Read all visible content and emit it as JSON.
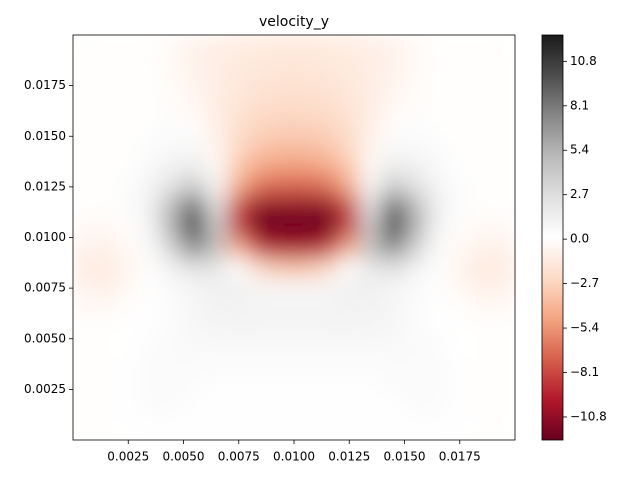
{
  "chart_data": {
    "type": "contourf",
    "title": "velocity_y",
    "x": [
      0.0005,
      0.0015,
      0.0025,
      0.0035,
      0.0045,
      0.0055,
      0.0065,
      0.0075,
      0.0085,
      0.0095,
      0.0105,
      0.0115,
      0.0125,
      0.0135,
      0.0145,
      0.0155,
      0.0165,
      0.0175,
      0.0185,
      0.0195
    ],
    "y": [
      0.0195,
      0.0185,
      0.0175,
      0.0165,
      0.0155,
      0.0145,
      0.0135,
      0.0125,
      0.0115,
      0.0105,
      0.0095,
      0.0085,
      0.0075,
      0.0065,
      0.0055,
      0.0045,
      0.0035,
      0.0025,
      0.0015,
      0.0005
    ],
    "z": [
      [
        0,
        0,
        0,
        0,
        -0.3,
        -0.8,
        -1,
        -1.2,
        -1.3,
        -1.4,
        -1.4,
        -1.3,
        -1.2,
        -1,
        -0.8,
        -0.3,
        0,
        0,
        0,
        0
      ],
      [
        0,
        0,
        0,
        0,
        -0.3,
        -0.8,
        -1.1,
        -1.3,
        -1.5,
        -1.6,
        -1.6,
        -1.5,
        -1.3,
        -1.1,
        -0.8,
        -0.3,
        0,
        0,
        0,
        0
      ],
      [
        0,
        0,
        0,
        0,
        -0.2,
        -0.6,
        -1.1,
        -1.5,
        -1.8,
        -1.9,
        -1.9,
        -1.8,
        -1.5,
        -1.1,
        -0.6,
        -0.2,
        0,
        0,
        0,
        0
      ],
      [
        0,
        0,
        0,
        0,
        -0.1,
        -0.4,
        -1.1,
        -1.7,
        -2.1,
        -2.2,
        -2.2,
        -2.1,
        -1.7,
        -1.1,
        -0.4,
        -0.1,
        0,
        0,
        0,
        0
      ],
      [
        0,
        0,
        0,
        0.2,
        0.3,
        0,
        -1,
        -2,
        -2.6,
        -2.8,
        -2.8,
        -2.6,
        -2,
        -1,
        0,
        0.3,
        0.2,
        0,
        0,
        0
      ],
      [
        0,
        0,
        0,
        0.3,
        0.6,
        0.6,
        -0.6,
        -2.4,
        -3.3,
        -3.6,
        -3.6,
        -3.3,
        -2.4,
        -0.6,
        0.6,
        0.6,
        0.3,
        0,
        0,
        0
      ],
      [
        0,
        0,
        0.2,
        0.6,
        1.2,
        1.6,
        -0.2,
        -3.2,
        -4.6,
        -5,
        -5,
        -4.6,
        -3.2,
        -0.2,
        1.6,
        1.2,
        0.6,
        0.2,
        0,
        0
      ],
      [
        0,
        0,
        0.3,
        1,
        2.5,
        4,
        0.8,
        -4.5,
        -6.8,
        -7.2,
        -7.2,
        -6.8,
        -4.5,
        0.8,
        4,
        2.5,
        1,
        0.3,
        0,
        0
      ],
      [
        0,
        0,
        0.3,
        1.2,
        5,
        9,
        2.5,
        -8,
        -11,
        -11,
        -11,
        -11,
        -8,
        2.5,
        9,
        5,
        1.2,
        0.3,
        0,
        0
      ],
      [
        -0.3,
        -0.4,
        0,
        1,
        5.5,
        11,
        4,
        -8.5,
        -12,
        -12,
        -12,
        -12,
        -8.5,
        4,
        11,
        5.5,
        1,
        0,
        -0.4,
        -0.3
      ],
      [
        -0.8,
        -0.8,
        -0.3,
        0.5,
        3.5,
        7.5,
        4.5,
        -4.5,
        -9,
        -10,
        -10,
        -9,
        -4.5,
        4.5,
        7.5,
        3.5,
        0.5,
        -0.3,
        -0.8,
        -0.8
      ],
      [
        -1.2,
        -1.3,
        -0.6,
        0.2,
        1.2,
        2.5,
        2,
        0.2,
        -2.5,
        -3.5,
        -3.5,
        -2.5,
        0.2,
        2,
        2.5,
        1.2,
        0.2,
        -0.6,
        -1.3,
        -1.2
      ],
      [
        -0.8,
        -0.9,
        -0.4,
        0.2,
        0.5,
        0.9,
        1.2,
        1.2,
        0.9,
        0.8,
        0.8,
        0.9,
        1.2,
        1.2,
        0.9,
        0.5,
        0.2,
        -0.4,
        -0.9,
        -0.8
      ],
      [
        -0.3,
        -0.3,
        0,
        0.2,
        0.4,
        0.8,
        1.1,
        1.1,
        1,
        1,
        1,
        1,
        1.1,
        1.1,
        0.8,
        0.4,
        0.2,
        0,
        -0.3,
        -0.3
      ],
      [
        0,
        0,
        0.1,
        0.2,
        0.4,
        0.7,
        0.9,
        1,
        1,
        1,
        1,
        1,
        1,
        0.9,
        0.7,
        0.4,
        0.2,
        0.1,
        0,
        0
      ],
      [
        0,
        0,
        0.1,
        0.3,
        0.5,
        0.6,
        0.6,
        0.6,
        0.6,
        0.6,
        0.6,
        0.6,
        0.6,
        0.6,
        0.6,
        0.5,
        0.3,
        0.1,
        0,
        0
      ],
      [
        0,
        0,
        0.2,
        0.4,
        0.5,
        0.4,
        0.3,
        0.3,
        0.3,
        0.3,
        0.3,
        0.3,
        0.3,
        0.3,
        0.4,
        0.5,
        0.4,
        0.2,
        0,
        0
      ],
      [
        0,
        0,
        0.2,
        0.4,
        0.4,
        0.3,
        0.2,
        0.2,
        0.2,
        0.2,
        0.2,
        0.2,
        0.2,
        0.2,
        0.3,
        0.4,
        0.4,
        0.2,
        0,
        0
      ],
      [
        0,
        0,
        0.2,
        0.3,
        0.3,
        0.2,
        0.2,
        0.2,
        0.2,
        0.2,
        0.2,
        0.2,
        0.2,
        0.2,
        0.2,
        0.3,
        0.3,
        0.2,
        0,
        0
      ],
      [
        0,
        0,
        0.1,
        0.2,
        0.2,
        0.2,
        0.2,
        0.2,
        0.2,
        0.2,
        0.2,
        0.2,
        0.2,
        0.2,
        0.2,
        0.2,
        0.2,
        0.1,
        0,
        0
      ]
    ],
    "xlim": [
      0,
      0.02
    ],
    "ylim": [
      0,
      0.02
    ],
    "xticks": [
      0.0025,
      {
        "value": 0.005,
        "label": "0.0050"
      },
      0.0075,
      {
        "value": 0.01,
        "label": "0.0100"
      },
      0.0125,
      {
        "value": 0.015,
        "label": "0.0150"
      },
      0.0175
    ],
    "yticks": [
      0.0025,
      {
        "value": 0.005,
        "label": "0.0050"
      },
      0.0075,
      {
        "value": 0.01,
        "label": "0.0100"
      },
      0.0125,
      {
        "value": 0.015,
        "label": "0.0150"
      },
      0.0175
    ],
    "clim": [
      -12.2,
      12.4
    ],
    "cticks": [
      {
        "value": -10.8,
        "label": "−10.8"
      },
      {
        "value": -8.1,
        "label": "−8.1"
      },
      {
        "value": -5.4,
        "label": "−5.4"
      },
      {
        "value": -2.7,
        "label": "−2.7"
      },
      {
        "value": 0,
        "label": "0.0"
      },
      2.7,
      5.4,
      8.1,
      10.8
    ],
    "colormap": [
      "#67001f",
      "#b2182b",
      "#d6604d",
      "#f4a582",
      "#fddbc7",
      "#ffffff",
      "#e0e0e0",
      "#bababa",
      "#878787",
      "#4d4d4d",
      "#1a1a1a"
    ]
  }
}
